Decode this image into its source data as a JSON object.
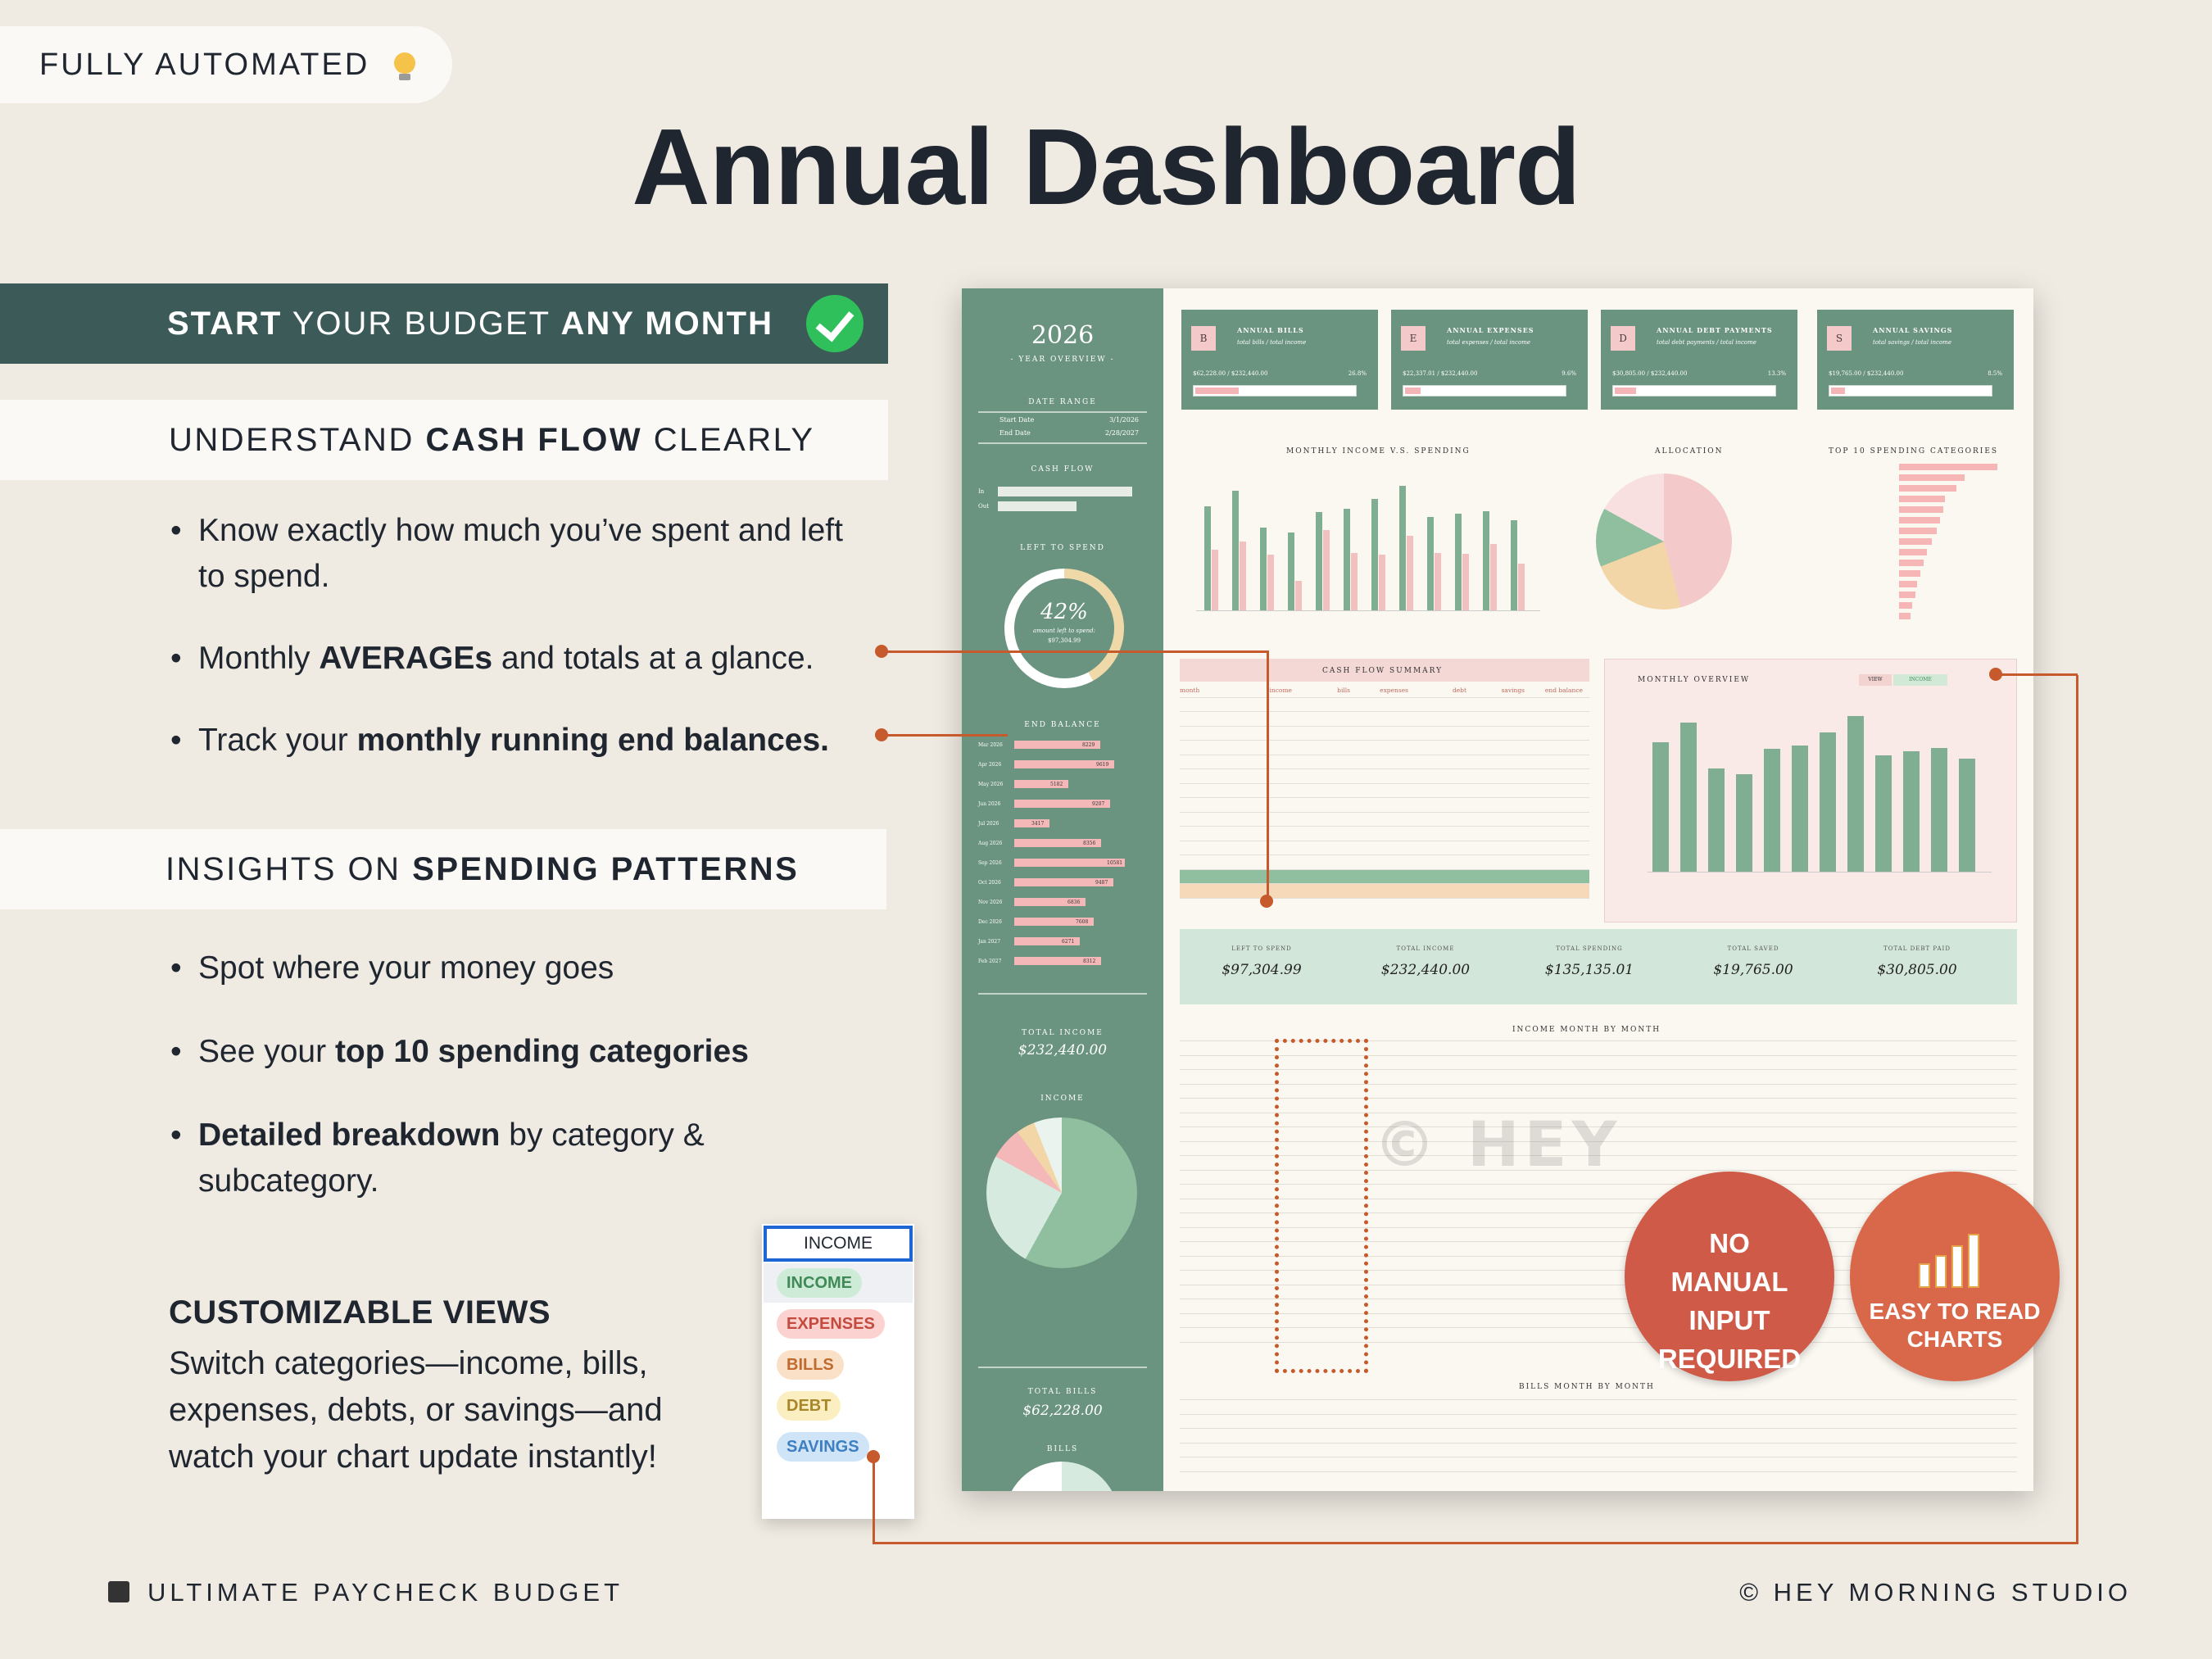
{
  "badge": {
    "text": "FULLY AUTOMATED"
  },
  "title": "Annual Dashboard",
  "left": {
    "band1": {
      "a": "START",
      "b": " YOUR BUDGET ",
      "c": "ANY MONTH"
    },
    "band2": {
      "a": "UNDERSTAND ",
      "b": "CASH FLOW",
      "c": " CLEARLY"
    },
    "bullets1": [
      {
        "pre": "Know exactly how much you’ve spent and left to spend.",
        "bold": "",
        "post": ""
      },
      {
        "pre": "Monthly ",
        "bold": "AVERAGEs",
        "post": " and totals at a glance."
      },
      {
        "pre": "Track your ",
        "bold": "monthly running end balances.",
        "post": ""
      }
    ],
    "band3": {
      "a": "INSIGHTS ON ",
      "b": "SPENDING PATTERNS",
      "c": ""
    },
    "bullets2": [
      {
        "pre": "Spot where your money goes",
        "bold": "",
        "post": ""
      },
      {
        "pre": "See your ",
        "bold": "top 10 spending categories",
        "post": ""
      },
      {
        "pre": "",
        "bold": "Detailed breakdown",
        "post": " by category & subcategory."
      }
    ],
    "custom_title": "CUSTOMIZABLE VIEWS",
    "custom_text": "Switch categories—income, bills, expenses, debts, or savings—and watch your chart update instantly!"
  },
  "dropdown": {
    "header": "INCOME",
    "options": [
      {
        "label": "INCOME",
        "bg": "#cdebd6",
        "fg": "#3f8a57"
      },
      {
        "label": "EXPENSES",
        "bg": "#fbd2cf",
        "fg": "#c44a3e"
      },
      {
        "label": "BILLS",
        "bg": "#fbe0c8",
        "fg": "#c06a2e"
      },
      {
        "label": "DEBT",
        "bg": "#fbefc2",
        "fg": "#a8862a"
      },
      {
        "label": "SAVINGS",
        "bg": "#cfe4f7",
        "fg": "#3d7fc0"
      }
    ]
  },
  "footer": {
    "left": "ULTIMATE PAYCHECK BUDGET",
    "right": "© HEY MORNING STUDIO"
  },
  "dashboard": {
    "year": "2026",
    "year_sub": "- YEAR OVERVIEW -",
    "date_range_label": "DATE RANGE",
    "start_label": "Start Date",
    "start": "3/1/2026",
    "end_label": "End Date",
    "end": "2/28/2027",
    "cash_flow_label": "CASH FLOW",
    "in_label": "In",
    "out_label": "Out",
    "left_label": "LEFT TO SPEND",
    "left_pct": "42%",
    "left_sub": "amount left to spend:",
    "left_amount": "$97,304.99",
    "end_balance_label": "END BALANCE",
    "end_balances": [
      {
        "m": "Mar 2026",
        "v": "8229"
      },
      {
        "m": "Apr 2026",
        "v": "9619"
      },
      {
        "m": "May 2026",
        "v": "5182"
      },
      {
        "m": "Jun 2026",
        "v": "9207"
      },
      {
        "m": "Jul 2026",
        "v": "3417"
      },
      {
        "m": "Aug 2026",
        "v": "8356"
      },
      {
        "m": "Sep 2026",
        "v": "10581"
      },
      {
        "m": "Oct 2026",
        "v": "9487"
      },
      {
        "m": "Nov 2026",
        "v": "6836"
      },
      {
        "m": "Dec 2026",
        "v": "7608"
      },
      {
        "m": "Jan 2027",
        "v": "6271"
      },
      {
        "m": "Feb 2027",
        "v": "8312"
      }
    ],
    "total_income_label": "TOTAL INCOME",
    "total_income": "$232,440.00",
    "income_label": "INCOME",
    "total_bills_label": "TOTAL BILLS",
    "total_bills": "$62,228.00",
    "bills_label": "BILLS",
    "kpis": [
      {
        "ic": "B",
        "t": "ANNUAL BILLS",
        "s": "total bills / total income",
        "v": "$62,228.00 / $232,440.00",
        "p": "26.8%",
        "f": 0.268
      },
      {
        "ic": "E",
        "t": "ANNUAL EXPENSES",
        "s": "total expenses / total income",
        "v": "$22,337.01 / $232,440.00",
        "p": "9.6%",
        "f": 0.096
      },
      {
        "ic": "D",
        "t": "ANNUAL DEBT PAYMENTS",
        "s": "total debt payments / total income",
        "v": "$30,805.00 / $232,440.00",
        "p": "13.3%",
        "f": 0.133
      },
      {
        "ic": "S",
        "t": "ANNUAL SAVINGS",
        "s": "total savings / total income",
        "v": "$19,765.00 / $232,440.00",
        "p": "8.5%",
        "f": 0.085
      }
    ],
    "miv_title": "MONTHLY INCOME V.S. SPENDING",
    "alloc_title": "ALLOCATION",
    "top10_title": "TOP 10 SPENDING CATEGORIES",
    "cfs_title": "CASH FLOW SUMMARY",
    "cfs_header": [
      "month",
      "income",
      "bills",
      "expenses",
      "debt",
      "savings",
      "end balance"
    ],
    "mo_title": "MONTHLY OVERVIEW",
    "mo_view": "VIEW",
    "mo_sel": "INCOME",
    "totals": [
      {
        "l": "LEFT TO SPEND",
        "n": "$97,304.99"
      },
      {
        "l": "TOTAL INCOME",
        "n": "$232,440.00"
      },
      {
        "l": "TOTAL SPENDING",
        "n": "$135,135.01"
      },
      {
        "l": "TOTAL SAVED",
        "n": "$19,765.00"
      },
      {
        "l": "TOTAL DEBT PAID",
        "n": "$30,805.00"
      }
    ],
    "imb_title": "INCOME MONTH BY MONTH",
    "bmb_title": "BILLS MONTH BY MONTH",
    "watermark": "© HEY"
  },
  "circles": {
    "c1": "NO MANUAL INPUT REQUIRED",
    "c2": "EASY TO READ CHARTS"
  }
}
